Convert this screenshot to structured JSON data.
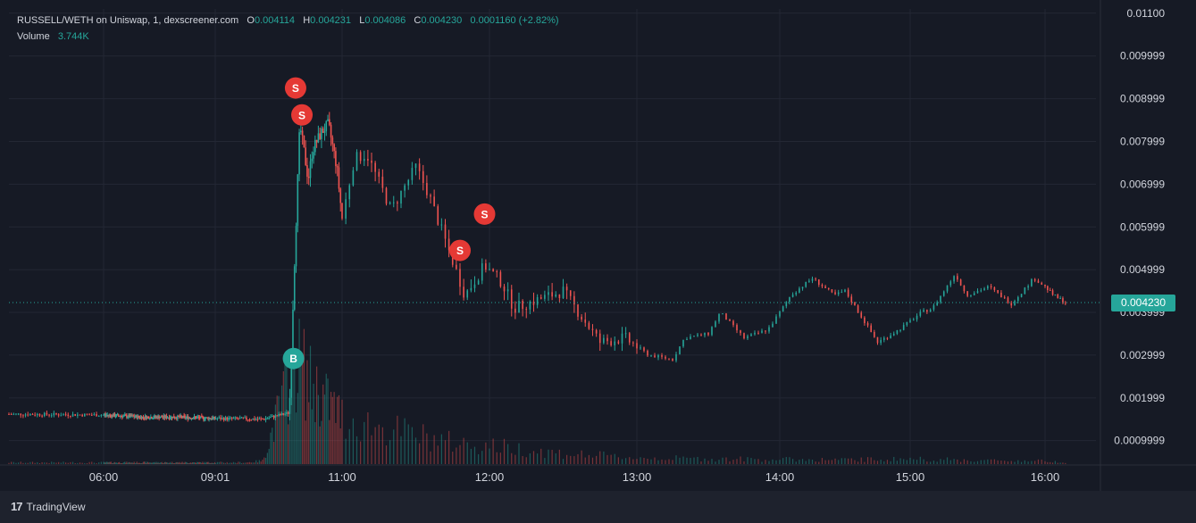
{
  "header": {
    "pair": "RUSSELL/WETH on Uniswap, 1, dexscreener.com",
    "o_label": "O",
    "o": "0.004114",
    "h_label": "H",
    "h": "0.004231",
    "l_label": "L",
    "l": "0.004086",
    "c_label": "C",
    "c": "0.004230",
    "change": "0.0001160 (+2.82%)",
    "volume_label": "Volume",
    "volume": "3.744K"
  },
  "last_price": "0.004230",
  "brand": "TradingView",
  "colors": {
    "up": "#26a69a",
    "down": "#ef5350",
    "background": "#161a25",
    "grid": "#232734",
    "text": "#d1d4dc",
    "buy_marker": "#26a69a",
    "sell_marker": "#e53935"
  },
  "chart_data": {
    "type": "candlestick",
    "title": "",
    "x_axis": {
      "type": "time",
      "tick_labels": [
        "06:00",
        "09:01",
        "11:00",
        "12:00",
        "13:00",
        "14:00",
        "15:00",
        "16:00"
      ]
    },
    "y_axis": {
      "position": "right",
      "tick_labels": [
        "0.0009999",
        "0.001999",
        "0.002999",
        "0.003999",
        "0.004999",
        "0.005999",
        "0.006999",
        "0.007999",
        "0.008999",
        "0.009999",
        "0.01100"
      ],
      "ylim": [
        0.00045,
        0.0111
      ]
    },
    "grid": true,
    "price_path": {
      "x_time": [
        "05:00",
        "06:00",
        "07:00",
        "08:00",
        "09:00",
        "09:45",
        "10:10",
        "10:12",
        "10:15",
        "10:20",
        "10:25",
        "10:28",
        "10:32",
        "10:40",
        "10:47",
        "10:55",
        "11:00",
        "11:05",
        "11:10",
        "11:20",
        "11:30",
        "11:35",
        "11:45",
        "11:50",
        "11:58",
        "12:05",
        "12:10",
        "12:20",
        "12:30",
        "12:45",
        "12:55",
        "13:05",
        "13:15",
        "13:20",
        "13:30",
        "13:35",
        "13:45",
        "13:55",
        "14:05",
        "14:15",
        "14:25",
        "14:30",
        "14:45",
        "14:55",
        "15:05",
        "15:10",
        "15:20",
        "15:25",
        "15:35",
        "15:45",
        "15:55",
        "16:05",
        "16:12"
      ],
      "y": [
        0.00162,
        0.0016,
        0.00155,
        0.00155,
        0.00152,
        0.0015,
        0.00165,
        0.0031,
        0.0052,
        0.0084,
        0.0076,
        0.0071,
        0.0078,
        0.0082,
        0.0084,
        0.0074,
        0.0062,
        0.0076,
        0.0077,
        0.0064,
        0.0074,
        0.0068,
        0.0052,
        0.0044,
        0.0051,
        0.0047,
        0.0041,
        0.0043,
        0.0045,
        0.0033,
        0.0034,
        0.003,
        0.0029,
        0.0034,
        0.0035,
        0.004,
        0.0034,
        0.0036,
        0.0044,
        0.0048,
        0.0044,
        0.0045,
        0.0033,
        0.0036,
        0.004,
        0.0041,
        0.0049,
        0.0044,
        0.0046,
        0.0042,
        0.0048,
        0.0044,
        0.00423
      ]
    },
    "volume_series": {
      "x_time": [
        "05:00",
        "09:30",
        "09:45",
        "10:10",
        "10:15",
        "10:20",
        "10:30",
        "10:45",
        "11:00",
        "11:15",
        "11:30",
        "11:45",
        "12:00",
        "12:30",
        "13:00",
        "13:30",
        "14:00",
        "14:30",
        "15:00",
        "15:30",
        "16:00",
        "16:12"
      ],
      "values": [
        3,
        3,
        6,
        160,
        200,
        190,
        150,
        120,
        90,
        70,
        55,
        40,
        35,
        20,
        12,
        10,
        9,
        8,
        10,
        7,
        6,
        3.744
      ]
    },
    "markers": [
      {
        "type": "B",
        "time": "10:14",
        "price": 0.00292
      },
      {
        "type": "S",
        "time": "10:16",
        "price": 0.00925
      },
      {
        "type": "S",
        "time": "10:22",
        "price": 0.00862
      },
      {
        "type": "S",
        "time": "11:48",
        "price": 0.00545
      },
      {
        "type": "S",
        "time": "11:58",
        "price": 0.0063
      }
    ]
  }
}
